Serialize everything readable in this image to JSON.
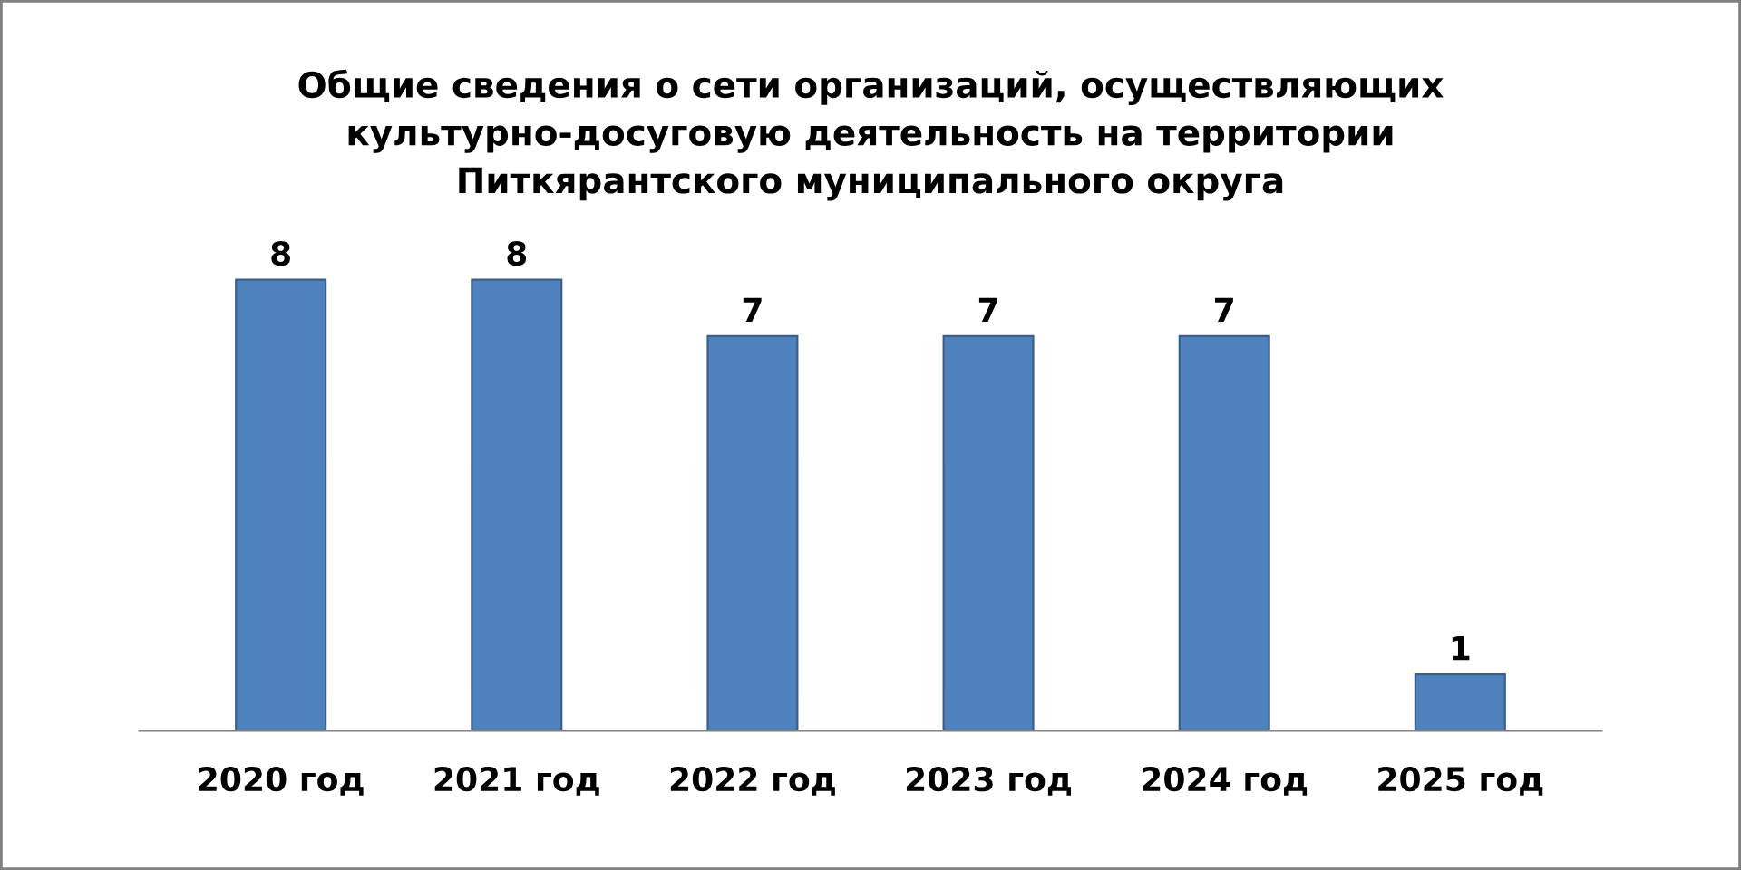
{
  "chart_data": {
    "type": "bar",
    "title": "Общие сведения о сети организаций, осуществляющих\nкультурно-досуговую деятельность на территории\nПиткярантского муниципального округа",
    "categories": [
      "2020 год",
      "2021 год",
      "2022 год",
      "2023 год",
      "2024 год",
      "2025 год"
    ],
    "values": [
      8,
      8,
      7,
      7,
      7,
      1
    ],
    "color": "#4f81bd",
    "data_labels": true,
    "grid": false,
    "legend": false,
    "tick_labels": "x"
  }
}
